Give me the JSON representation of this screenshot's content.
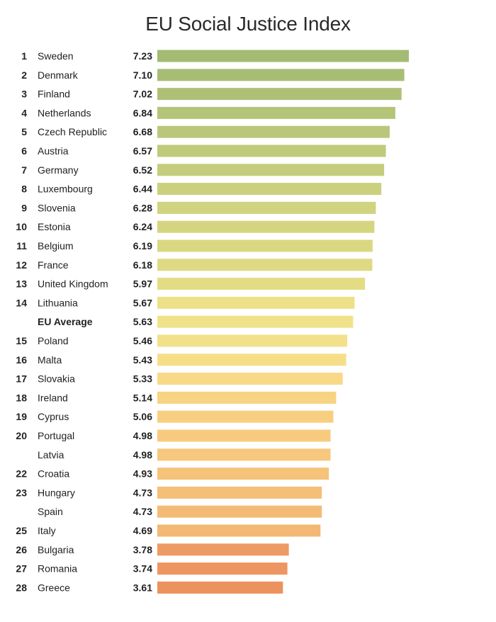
{
  "chart_data": {
    "type": "bar",
    "orientation": "horizontal",
    "title": "EU Social Justice Index",
    "xlabel": "",
    "ylabel": "",
    "xlim": [
      0,
      7.23
    ],
    "grid": false,
    "legend": "none",
    "rows": [
      {
        "rank": "1",
        "country": "Sweden",
        "value": 7.23,
        "value_label": "7.23",
        "color": "#a3bb73"
      },
      {
        "rank": "2",
        "country": "Denmark",
        "value": 7.1,
        "value_label": "7.10",
        "color": "#a8bd74"
      },
      {
        "rank": "3",
        "country": "Finland",
        "value": 7.02,
        "value_label": "7.02",
        "color": "#aec076"
      },
      {
        "rank": "4",
        "country": "Netherlands",
        "value": 6.84,
        "value_label": "6.84",
        "color": "#b4c478"
      },
      {
        "rank": "5",
        "country": "Czech Republic",
        "value": 6.68,
        "value_label": "6.68",
        "color": "#bac77a"
      },
      {
        "rank": "6",
        "country": "Austria",
        "value": 6.57,
        "value_label": "6.57",
        "color": "#c0ca7b"
      },
      {
        "rank": "7",
        "country": "Germany",
        "value": 6.52,
        "value_label": "6.52",
        "color": "#c5cd7d"
      },
      {
        "rank": "8",
        "country": "Luxembourg",
        "value": 6.44,
        "value_label": "6.44",
        "color": "#cbd07e"
      },
      {
        "rank": "9",
        "country": "Slovenia",
        "value": 6.28,
        "value_label": "6.28",
        "color": "#d0d37f"
      },
      {
        "rank": "10",
        "country": "Estonia",
        "value": 6.24,
        "value_label": "6.24",
        "color": "#d5d580"
      },
      {
        "rank": "11",
        "country": "Belgium",
        "value": 6.19,
        "value_label": "6.19",
        "color": "#d9d881"
      },
      {
        "rank": "12",
        "country": "France",
        "value": 6.18,
        "value_label": "6.18",
        "color": "#ddda83"
      },
      {
        "rank": "13",
        "country": "United Kingdom",
        "value": 5.97,
        "value_label": "5.97",
        "color": "#e3dc85"
      },
      {
        "rank": "14",
        "country": "Lithuania",
        "value": 5.67,
        "value_label": "5.67",
        "color": "#ece189"
      },
      {
        "rank": "",
        "country": "EU Average",
        "value": 5.63,
        "value_label": "5.63",
        "color": "#f0e28b",
        "bold": true
      },
      {
        "rank": "15",
        "country": "Poland",
        "value": 5.46,
        "value_label": "5.46",
        "color": "#f3e08a"
      },
      {
        "rank": "16",
        "country": "Malta",
        "value": 5.43,
        "value_label": "5.43",
        "color": "#f6de89"
      },
      {
        "rank": "17",
        "country": "Slovakia",
        "value": 5.33,
        "value_label": "5.33",
        "color": "#f7d987"
      },
      {
        "rank": "18",
        "country": "Ireland",
        "value": 5.14,
        "value_label": "5.14",
        "color": "#f8d382"
      },
      {
        "rank": "19",
        "country": "Cyprus",
        "value": 5.06,
        "value_label": "5.06",
        "color": "#f8cf80"
      },
      {
        "rank": "20",
        "country": "Portugal",
        "value": 4.98,
        "value_label": "4.98",
        "color": "#f7cb7e"
      },
      {
        "rank": "",
        "country": "Latvia",
        "value": 4.98,
        "value_label": "4.98",
        "color": "#f6c77c"
      },
      {
        "rank": "22",
        "country": "Croatia",
        "value": 4.93,
        "value_label": "4.93",
        "color": "#f5c37a"
      },
      {
        "rank": "23",
        "country": "Hungary",
        "value": 4.73,
        "value_label": "4.73",
        "color": "#f4bf78"
      },
      {
        "rank": "",
        "country": "Spain",
        "value": 4.73,
        "value_label": "4.73",
        "color": "#f3bb76"
      },
      {
        "rank": "25",
        "country": "Italy",
        "value": 4.69,
        "value_label": "4.69",
        "color": "#f2b874"
      },
      {
        "rank": "26",
        "country": "Bulgaria",
        "value": 3.78,
        "value_label": "3.78",
        "color": "#ee9a64"
      },
      {
        "rank": "27",
        "country": "Romania",
        "value": 3.74,
        "value_label": "3.74",
        "color": "#ed9661"
      },
      {
        "rank": "28",
        "country": "Greece",
        "value": 3.61,
        "value_label": "3.61",
        "color": "#ec925e"
      }
    ]
  }
}
